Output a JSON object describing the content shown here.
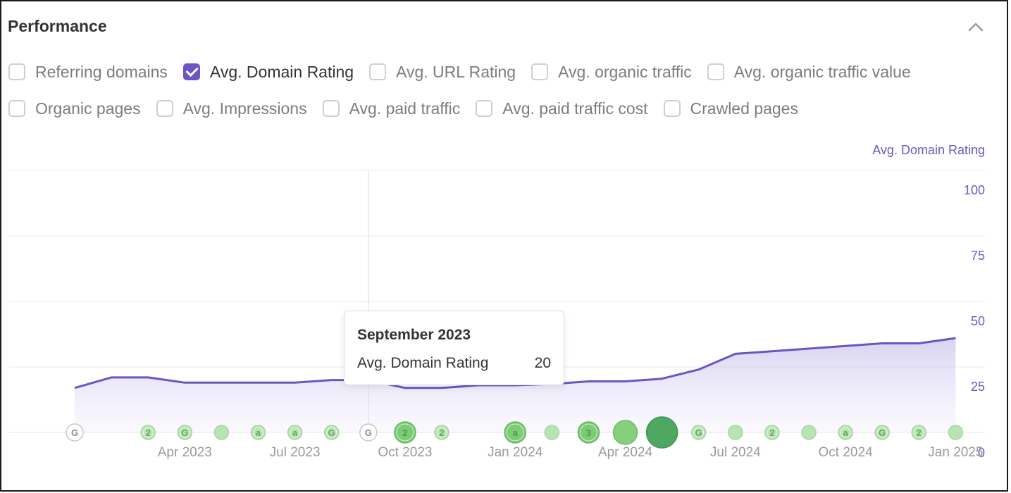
{
  "panel": {
    "title": "Performance"
  },
  "filters": {
    "row1": [
      {
        "label": "Referring domains",
        "checked": false
      },
      {
        "label": "Avg. Domain Rating",
        "checked": true
      },
      {
        "label": "Avg. URL Rating",
        "checked": false
      },
      {
        "label": "Avg. organic traffic",
        "checked": false
      },
      {
        "label": "Avg. organic traffic value",
        "checked": false
      }
    ],
    "row2": [
      {
        "label": "Organic pages",
        "checked": false
      },
      {
        "label": "Avg. Impressions",
        "checked": false
      },
      {
        "label": "Avg. paid traffic",
        "checked": false
      },
      {
        "label": "Avg. paid traffic cost",
        "checked": false
      },
      {
        "label": "Crawled pages",
        "checked": false
      }
    ]
  },
  "tooltip": {
    "title": "September 2023",
    "label": "Avg. Domain Rating",
    "value": "20"
  },
  "colors": {
    "accent": "#6c56c6",
    "line": "#6b55c4",
    "axis_text": "#6b5bc0",
    "event_light": "#b9e3b5",
    "event_mid": "#7ccb75",
    "event_dark": "#4ea862"
  },
  "chart_data": {
    "type": "area",
    "series": [
      {
        "name": "Avg. Domain Rating",
        "x": [
          "2023-01",
          "2023-02",
          "2023-03",
          "2023-04",
          "2023-05",
          "2023-06",
          "2023-07",
          "2023-08",
          "2023-09",
          "2023-10",
          "2023-11",
          "2023-12",
          "2024-01",
          "2024-02",
          "2024-03",
          "2024-04",
          "2024-05",
          "2024-06",
          "2024-07",
          "2024-08",
          "2024-09",
          "2024-10",
          "2024-11",
          "2024-12",
          "2025-01"
        ],
        "values": [
          17,
          21,
          21,
          19,
          19,
          19,
          19,
          20,
          20,
          17,
          17,
          18,
          18,
          18.5,
          19.5,
          19.5,
          20.5,
          24,
          30,
          31,
          32,
          33,
          34,
          34,
          36
        ]
      }
    ],
    "ylabel": "Avg. Domain Rating",
    "ylim": [
      0,
      100
    ],
    "yticks": [
      0,
      25,
      50,
      75,
      100
    ],
    "xticks": [
      {
        "label": "Apr 2023",
        "x": "2023-04"
      },
      {
        "label": "Jul 2023",
        "x": "2023-07"
      },
      {
        "label": "Oct 2023",
        "x": "2023-10"
      },
      {
        "label": "Jan 2024",
        "x": "2024-01"
      },
      {
        "label": "Apr 2024",
        "x": "2024-04"
      },
      {
        "label": "Jul 2024",
        "x": "2024-07"
      },
      {
        "label": "Oct 2024",
        "x": "2024-10"
      },
      {
        "label": "Jan 2025",
        "x": "2025-01"
      }
    ],
    "highlight": {
      "x": "2023-09",
      "value": 20
    },
    "events": [
      {
        "x": "2023-01",
        "label": "G",
        "kind": "google"
      },
      {
        "x": "2023-03",
        "label": "2",
        "kind": "light"
      },
      {
        "x": "2023-04",
        "label": "G",
        "kind": "light"
      },
      {
        "x": "2023-05",
        "label": "",
        "kind": "light"
      },
      {
        "x": "2023-06",
        "label": "a",
        "kind": "light"
      },
      {
        "x": "2023-07",
        "label": "a",
        "kind": "light"
      },
      {
        "x": "2023-08",
        "label": "G",
        "kind": "light"
      },
      {
        "x": "2023-09",
        "label": "G",
        "kind": "google"
      },
      {
        "x": "2023-10",
        "label": "2",
        "kind": "mid-large"
      },
      {
        "x": "2023-11",
        "label": "2",
        "kind": "light"
      },
      {
        "x": "2024-01",
        "label": "a",
        "kind": "mid-large"
      },
      {
        "x": "2024-02",
        "label": "",
        "kind": "light"
      },
      {
        "x": "2024-03",
        "label": "3",
        "kind": "mid-large"
      },
      {
        "x": "2024-04",
        "label": "",
        "kind": "mid-xl"
      },
      {
        "x": "2024-05",
        "label": "",
        "kind": "dark-xxl"
      },
      {
        "x": "2024-06",
        "label": "G",
        "kind": "light"
      },
      {
        "x": "2024-07",
        "label": "",
        "kind": "light"
      },
      {
        "x": "2024-08",
        "label": "2",
        "kind": "light"
      },
      {
        "x": "2024-09",
        "label": "",
        "kind": "light"
      },
      {
        "x": "2024-10",
        "label": "a",
        "kind": "light"
      },
      {
        "x": "2024-11",
        "label": "G",
        "kind": "light"
      },
      {
        "x": "2024-12",
        "label": "2",
        "kind": "light"
      },
      {
        "x": "2025-01",
        "label": "",
        "kind": "light"
      }
    ],
    "grid": true,
    "legend": "none"
  }
}
